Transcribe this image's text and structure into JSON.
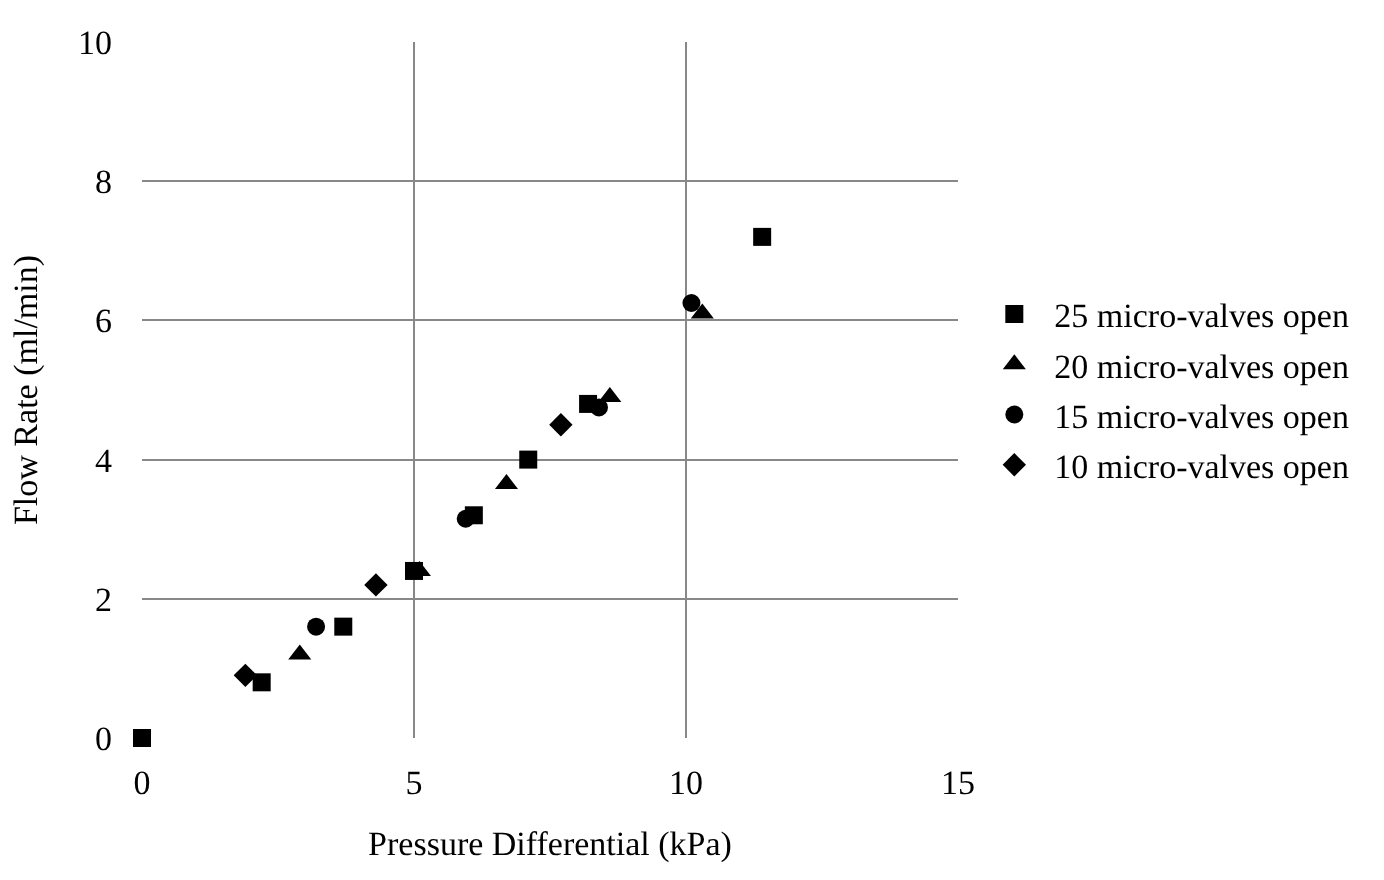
{
  "chart_data": {
    "type": "scatter",
    "xlabel": "Pressure Differential (kPa)",
    "ylabel": "Flow Rate (ml/min)",
    "xlim": [
      0,
      15
    ],
    "xticks": [
      0,
      5,
      10,
      15
    ],
    "ylim": [
      0,
      10
    ],
    "yticks": [
      0,
      2,
      4,
      6,
      8,
      10
    ],
    "grid": true,
    "legend": "right",
    "series": [
      {
        "name": "25 micro-valves open",
        "color": "#000000",
        "marker": "square",
        "x": [
          0,
          2.2,
          3.7,
          5.0,
          6.1,
          7.1,
          8.2,
          11.4
        ],
        "values": [
          0,
          0.8,
          1.6,
          2.4,
          3.2,
          4.0,
          4.8,
          7.2
        ]
      },
      {
        "name": "20 micro-valves open",
        "color": "#000000",
        "marker": "triangle",
        "x": [
          2.9,
          5.1,
          6.7,
          8.6,
          10.3
        ],
        "values": [
          1.2,
          2.4,
          3.65,
          4.9,
          6.1
        ]
      },
      {
        "name": "15 micro-valves open",
        "color": "#000000",
        "marker": "circle",
        "x": [
          3.2,
          5.95,
          8.4,
          10.1
        ],
        "values": [
          1.6,
          3.15,
          4.75,
          6.25
        ]
      },
      {
        "name": "10 micro-valves open",
        "color": "#000000",
        "marker": "diamond",
        "x": [
          1.9,
          4.3,
          7.7
        ],
        "values": [
          0.9,
          2.2,
          4.5
        ]
      }
    ]
  }
}
